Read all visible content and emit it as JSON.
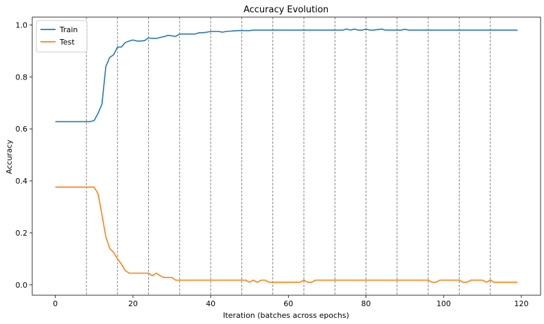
{
  "chart_data": {
    "type": "line",
    "title": "Accuracy Evolution",
    "xlabel": "Iteration (batches across epochs)",
    "ylabel": "Accuracy",
    "xlim": [
      -5.95,
      124.95
    ],
    "ylim": [
      -0.04,
      1.03
    ],
    "xticks": [
      0,
      20,
      40,
      60,
      80,
      100,
      120
    ],
    "yticks": [
      0.0,
      0.2,
      0.4,
      0.6,
      0.8,
      1.0
    ],
    "epoch_boundaries": [
      8,
      16,
      24,
      32,
      40,
      48,
      56,
      64,
      72,
      80,
      88,
      96,
      104,
      112
    ],
    "legend": "top-left",
    "grid": false,
    "series": [
      {
        "name": "Train",
        "color": "#1f77b4",
        "x": [
          0,
          1,
          2,
          3,
          4,
          5,
          6,
          7,
          8,
          9,
          10,
          11,
          12,
          13,
          14,
          15,
          16,
          17,
          18,
          19,
          20,
          21,
          22,
          23,
          24,
          25,
          26,
          27,
          28,
          29,
          30,
          31,
          32,
          33,
          34,
          35,
          36,
          37,
          38,
          39,
          40,
          41,
          42,
          43,
          44,
          45,
          46,
          47,
          48,
          49,
          50,
          51,
          52,
          53,
          54,
          55,
          56,
          57,
          58,
          59,
          60,
          61,
          62,
          63,
          64,
          65,
          66,
          67,
          68,
          69,
          70,
          71,
          72,
          73,
          74,
          75,
          76,
          77,
          78,
          79,
          80,
          81,
          82,
          83,
          84,
          85,
          86,
          87,
          88,
          89,
          90,
          91,
          92,
          93,
          94,
          95,
          96,
          97,
          98,
          99,
          100,
          101,
          102,
          103,
          104,
          105,
          106,
          107,
          108,
          109,
          110,
          111,
          112,
          113,
          114,
          115,
          116,
          117,
          118,
          119
        ],
        "y": [
          0.628,
          0.628,
          0.628,
          0.628,
          0.628,
          0.628,
          0.628,
          0.628,
          0.628,
          0.628,
          0.632,
          0.66,
          0.695,
          0.84,
          0.875,
          0.885,
          0.915,
          0.915,
          0.932,
          0.938,
          0.942,
          0.938,
          0.938,
          0.94,
          0.95,
          0.948,
          0.948,
          0.952,
          0.955,
          0.96,
          0.958,
          0.956,
          0.965,
          0.965,
          0.965,
          0.965,
          0.965,
          0.97,
          0.97,
          0.972,
          0.975,
          0.975,
          0.975,
          0.972,
          0.975,
          0.976,
          0.977,
          0.978,
          0.978,
          0.978,
          0.978,
          0.98,
          0.98,
          0.98,
          0.98,
          0.98,
          0.98,
          0.98,
          0.98,
          0.98,
          0.98,
          0.98,
          0.98,
          0.98,
          0.98,
          0.98,
          0.98,
          0.98,
          0.98,
          0.98,
          0.98,
          0.98,
          0.98,
          0.98,
          0.98,
          0.984,
          0.98,
          0.984,
          0.98,
          0.98,
          0.984,
          0.98,
          0.98,
          0.982,
          0.984,
          0.98,
          0.98,
          0.98,
          0.98,
          0.98,
          0.983,
          0.98,
          0.98,
          0.98,
          0.98,
          0.98,
          0.98,
          0.98,
          0.98,
          0.98,
          0.98,
          0.98,
          0.98,
          0.98,
          0.98,
          0.98,
          0.98,
          0.98,
          0.98,
          0.98,
          0.98,
          0.98,
          0.98,
          0.98,
          0.98,
          0.98,
          0.98,
          0.98,
          0.98,
          0.98
        ]
      },
      {
        "name": "Test",
        "color": "#ff7f0e",
        "x": [
          0,
          1,
          2,
          3,
          4,
          5,
          6,
          7,
          8,
          9,
          10,
          11,
          12,
          13,
          14,
          15,
          16,
          17,
          18,
          19,
          20,
          21,
          22,
          23,
          24,
          25,
          26,
          27,
          28,
          29,
          30,
          31,
          32,
          33,
          34,
          35,
          36,
          37,
          38,
          39,
          40,
          41,
          42,
          43,
          44,
          45,
          46,
          47,
          48,
          49,
          50,
          51,
          52,
          53,
          54,
          55,
          56,
          57,
          58,
          59,
          60,
          61,
          62,
          63,
          64,
          65,
          66,
          67,
          68,
          69,
          70,
          71,
          72,
          73,
          74,
          75,
          76,
          77,
          78,
          79,
          80,
          81,
          82,
          83,
          84,
          85,
          86,
          87,
          88,
          89,
          90,
          91,
          92,
          93,
          94,
          95,
          96,
          97,
          98,
          99,
          100,
          101,
          102,
          103,
          104,
          105,
          106,
          107,
          108,
          109,
          110,
          111,
          112,
          113,
          114,
          115,
          116,
          117,
          118,
          119
        ],
        "y": [
          0.376,
          0.376,
          0.376,
          0.376,
          0.376,
          0.376,
          0.376,
          0.376,
          0.376,
          0.376,
          0.376,
          0.35,
          0.27,
          0.185,
          0.14,
          0.125,
          0.1,
          0.08,
          0.055,
          0.045,
          0.045,
          0.045,
          0.045,
          0.045,
          0.045,
          0.035,
          0.045,
          0.035,
          0.028,
          0.028,
          0.028,
          0.018,
          0.018,
          0.018,
          0.018,
          0.018,
          0.018,
          0.018,
          0.018,
          0.018,
          0.018,
          0.018,
          0.018,
          0.018,
          0.018,
          0.018,
          0.018,
          0.018,
          0.018,
          0.018,
          0.01,
          0.018,
          0.01,
          0.018,
          0.018,
          0.01,
          0.01,
          0.01,
          0.01,
          0.01,
          0.01,
          0.01,
          0.01,
          0.01,
          0.018,
          0.01,
          0.01,
          0.018,
          0.018,
          0.018,
          0.018,
          0.018,
          0.018,
          0.018,
          0.018,
          0.018,
          0.018,
          0.018,
          0.018,
          0.018,
          0.018,
          0.018,
          0.018,
          0.018,
          0.018,
          0.018,
          0.018,
          0.018,
          0.018,
          0.018,
          0.018,
          0.018,
          0.018,
          0.018,
          0.018,
          0.018,
          0.018,
          0.01,
          0.01,
          0.018,
          0.018,
          0.018,
          0.018,
          0.018,
          0.018,
          0.01,
          0.01,
          0.018,
          0.018,
          0.018,
          0.018,
          0.01,
          0.018,
          0.01,
          0.01,
          0.01,
          0.01,
          0.01,
          0.01,
          0.01
        ]
      }
    ]
  }
}
